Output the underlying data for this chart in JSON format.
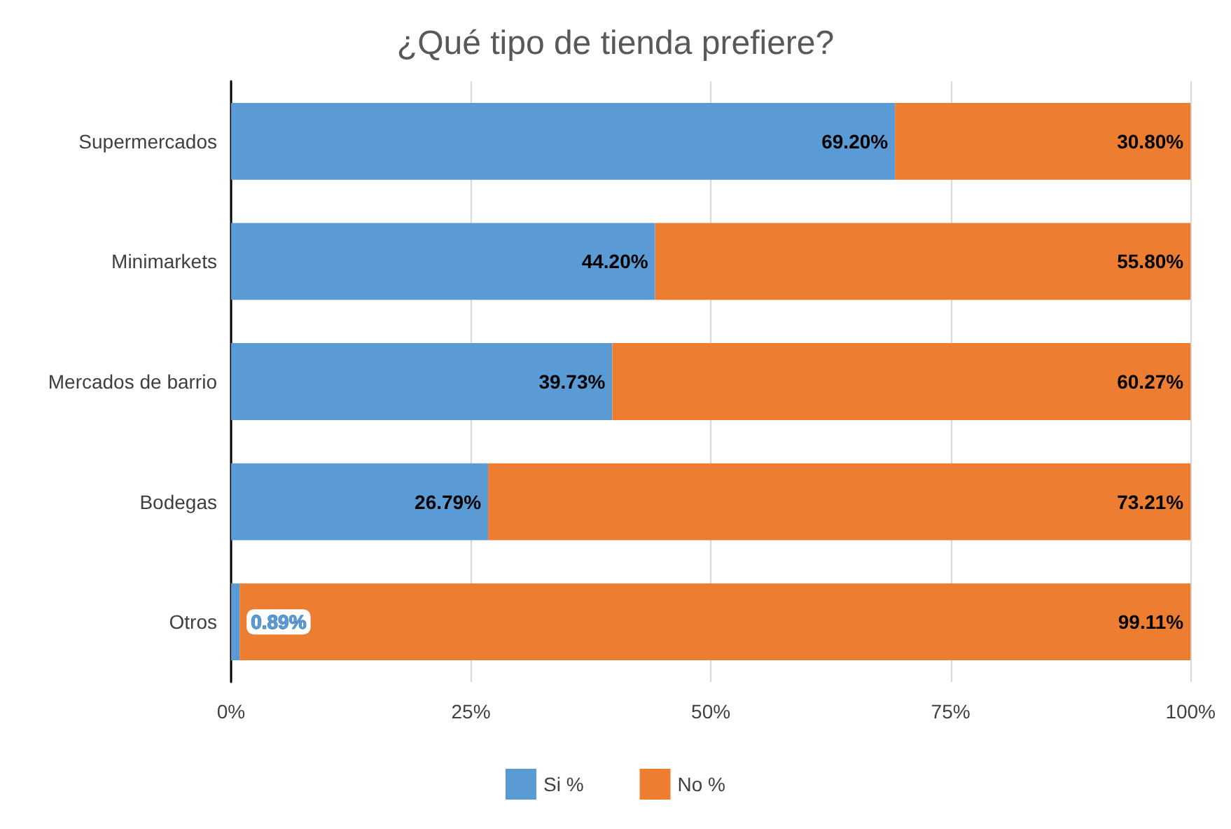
{
  "chart_data": {
    "type": "bar",
    "title": "¿Qué tipo de tienda prefiere?",
    "orientation": "horizontal",
    "stacked": true,
    "categories": [
      "Supermercados",
      "Minimarkets",
      "Mercados de barrio",
      "Bodegas",
      "Otros"
    ],
    "series": [
      {
        "name": "Si %",
        "color": "#5b9bd5",
        "values": [
          69.2,
          44.2,
          39.73,
          26.79,
          0.89
        ],
        "value_labels": [
          "69.20%",
          "44.20%",
          "39.73%",
          "26.79%",
          "0.89%"
        ]
      },
      {
        "name": "No %",
        "color": "#ed7d31",
        "values": [
          30.8,
          55.8,
          60.27,
          73.21,
          99.11
        ],
        "value_labels": [
          "30.80%",
          "55.80%",
          "60.27%",
          "73.21%",
          "99.11%"
        ]
      }
    ],
    "xlim": [
      0,
      100
    ],
    "xticks": [
      {
        "value": 0,
        "label": "0%"
      },
      {
        "value": 25,
        "label": "25%"
      },
      {
        "value": 50,
        "label": "50%"
      },
      {
        "value": 75,
        "label": "75%"
      },
      {
        "value": 100,
        "label": "100%"
      }
    ],
    "grid": "x",
    "legend": "bottom"
  }
}
